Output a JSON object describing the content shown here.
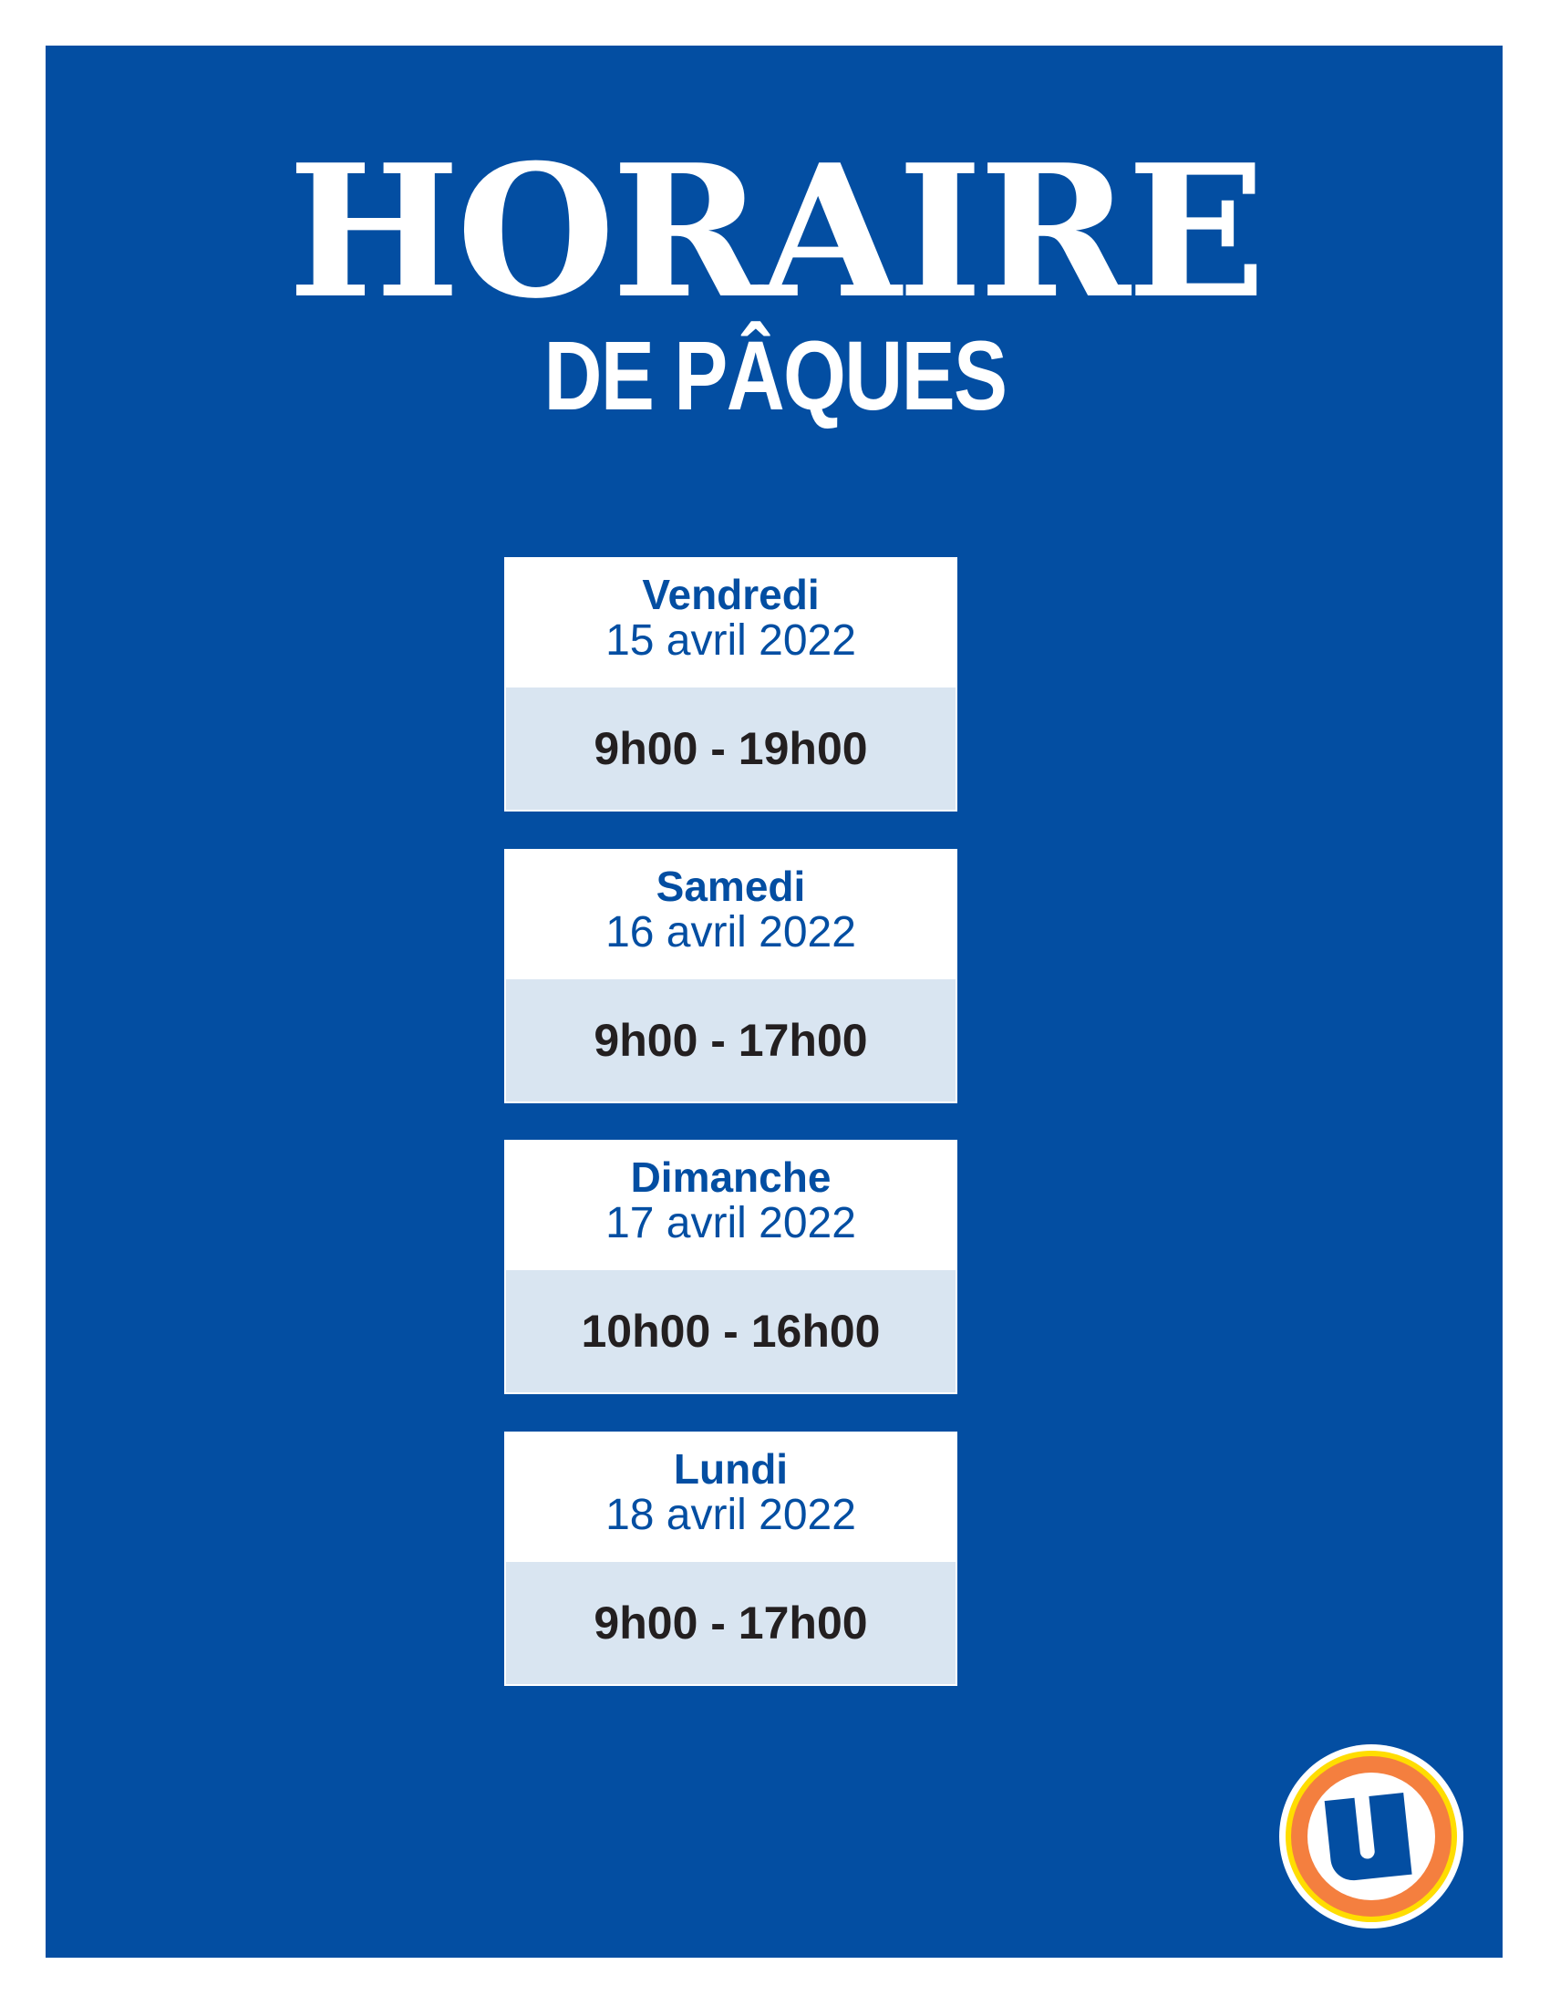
{
  "header": {
    "title": "HORAIRE",
    "subtitle": "DE PÂQUES"
  },
  "schedule": [
    {
      "day": "Vendredi",
      "date": "15 avril 2022",
      "hours": "9h00 - 19h00"
    },
    {
      "day": "Samedi",
      "date": "16 avril 2022",
      "hours": "9h00 - 17h00"
    },
    {
      "day": "Dimanche",
      "date": "17 avril 2022",
      "hours": "10h00 - 16h00"
    },
    {
      "day": "Lundi",
      "date": "18 avril 2022",
      "hours": "9h00 - 17h00"
    }
  ],
  "colors": {
    "brand_blue": "#034ea2",
    "hours_bg": "#d9e5f1",
    "logo_orange": "#f47f3f",
    "logo_yellow": "#ffdd00"
  },
  "logo": {
    "icon": "u-brand-logo"
  }
}
